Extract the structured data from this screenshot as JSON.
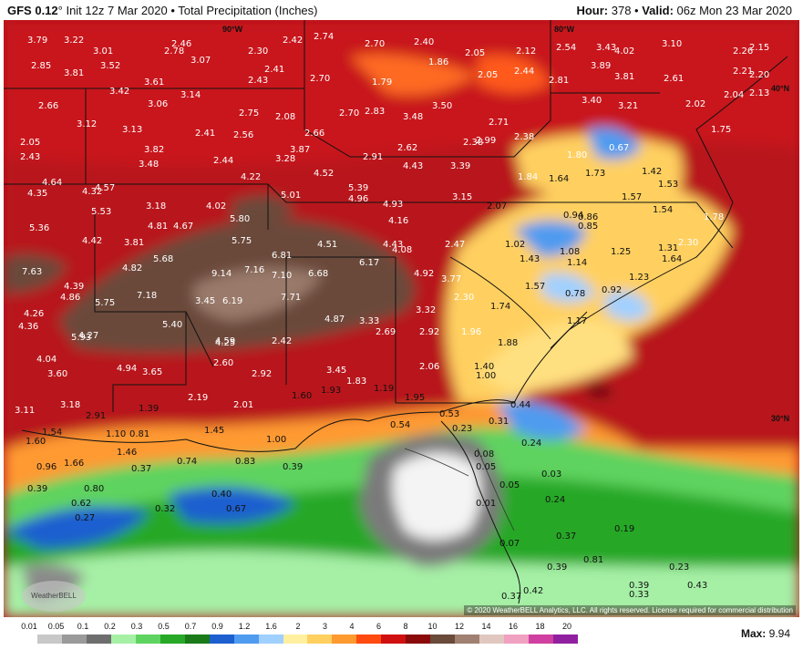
{
  "header": {
    "model": "GFS 0.12",
    "init": "Init 12z 7 Mar 2020",
    "product": "Total Precipitation (Inches)",
    "hour_label": "Hour:",
    "hour": "378",
    "valid_label": "Valid:",
    "valid": "06z Mon 23 Mar 2020"
  },
  "coords": [
    "90°W",
    "80°W",
    "40°N",
    "30°N"
  ],
  "copyright": "© 2020 WeatherBELL Analytics, LLC. All rights reserved. License required for commercial distribution",
  "logo": "WeatherBELL",
  "legend": {
    "ticks": [
      "0.01",
      "0.05",
      "0.1",
      "0.2",
      "0.3",
      "0.5",
      "0.7",
      "0.9",
      "1.2",
      "1.6",
      "2",
      "3",
      "4",
      "6",
      "8",
      "10",
      "12",
      "14",
      "16",
      "18",
      "20"
    ],
    "colors": [
      "#ffffff",
      "#c8c8c8",
      "#9a9a9a",
      "#6e6e6e",
      "#a6f0a6",
      "#5fd35f",
      "#27a827",
      "#1a7a1a",
      "#1e5fd0",
      "#4f9bf0",
      "#a0d0ff",
      "#fff0a0",
      "#ffd060",
      "#ff9a30",
      "#ff4a10",
      "#d01010",
      "#8a0a0a",
      "#6a4a3a",
      "#a08070",
      "#e0c8c0",
      "#f0a0c0",
      "#d040a0",
      "#9020a0"
    ],
    "max_label": "Max:",
    "max": "9.94"
  },
  "values": [
    "3.79",
    "3.22",
    "2.46",
    "2.74",
    "2.42",
    "2.70",
    "2.40",
    "2.05",
    "2.12",
    "2.54",
    "3.43",
    "4.02",
    "3.10",
    "2.26",
    "2.15",
    "2.85",
    "3.81",
    "3.52",
    "3.01",
    "2.78",
    "3.07",
    "2.30",
    "2.41",
    "1.86",
    "2.44",
    "3.89",
    "3.81",
    "2.61",
    "2.21",
    "2.20",
    "3.42",
    "3.61",
    "2.43",
    "2.70",
    "1.79",
    "2.05",
    "2.81",
    "3.40",
    "2.04",
    "2.13",
    "2.66",
    "3.06",
    "3.14",
    "2.75",
    "2.08",
    "2.70",
    "2.83",
    "3.48",
    "3.50",
    "2.71",
    "3.21",
    "2.02",
    "3.12",
    "3.13",
    "2.41",
    "2.56",
    "2.66",
    "2.38",
    "2.99",
    "2.38",
    "1.75",
    "2.05",
    "3.82",
    "3.87",
    "2.62",
    "0.67",
    "1.80",
    "2.43",
    "3.48",
    "2.44",
    "3.28",
    "2.91",
    "4.43",
    "3.39",
    "1.73",
    "1.42",
    "4.64",
    "4.57",
    "4.22",
    "4.52",
    "1.84",
    "1.64",
    "1.53",
    "4.35",
    "4.32",
    "5.01",
    "5.39",
    "4.96",
    "3.15",
    "1.57",
    "5.53",
    "3.18",
    "4.02",
    "4.93",
    "2.07",
    "0.94",
    "0.86",
    "1.54",
    "1.78",
    "5.36",
    "4.81",
    "4.67",
    "5.80",
    "4.16",
    "0.85",
    "4.42",
    "3.81",
    "5.75",
    "4.51",
    "4.43",
    "4.08",
    "2.47",
    "1.02",
    "1.08",
    "1.25",
    "1.31",
    "2.30",
    "5.68",
    "6.81",
    "6.17",
    "1.43",
    "1.14",
    "1.64",
    "7.63",
    "4.82",
    "9.14",
    "7.16",
    "7.10",
    "6.68",
    "4.92",
    "3.77",
    "1.23",
    "4.39",
    "5.75",
    "7.18",
    "3.45",
    "6.19",
    "7.71",
    "1.57",
    "0.78",
    "0.92",
    "4.86",
    "2.30",
    "4.26",
    "3.32",
    "1.74",
    "4.36",
    "5.40",
    "4.87",
    "3.33",
    "1.17",
    "5.93",
    "4.27",
    "4.59",
    "4.25",
    "2.42",
    "2.69",
    "2.92",
    "1.96",
    "1.88",
    "4.04",
    "3.60",
    "4.94",
    "3.65",
    "2.60",
    "2.92",
    "3.45",
    "2.06",
    "1.40",
    "1.83",
    "1.93",
    "1.19",
    "1.00",
    "3.11",
    "3.18",
    "1.39",
    "2.19",
    "2.01",
    "1.60",
    "1.95",
    "0.44",
    "2.91",
    "1.45",
    "0.53",
    "0.31",
    "1.54",
    "1.10",
    "0.81",
    "1.00",
    "0.54",
    "0.23",
    "1.60",
    "1.46",
    "0.24",
    "0.96",
    "1.66",
    "0.37",
    "0.74",
    "0.83",
    "0.39",
    "0.08",
    "0.05",
    "0.03",
    "0.39",
    "0.80",
    "0.40",
    "0.05",
    "0.62",
    "0.32",
    "0.67",
    "0.01",
    "0.24",
    "0.27",
    "0.07",
    "0.37",
    "0.19",
    "0.81",
    "0.23",
    "0.39",
    "0.42",
    "0.37",
    "0.43",
    "0.39",
    "0.33"
  ]
}
